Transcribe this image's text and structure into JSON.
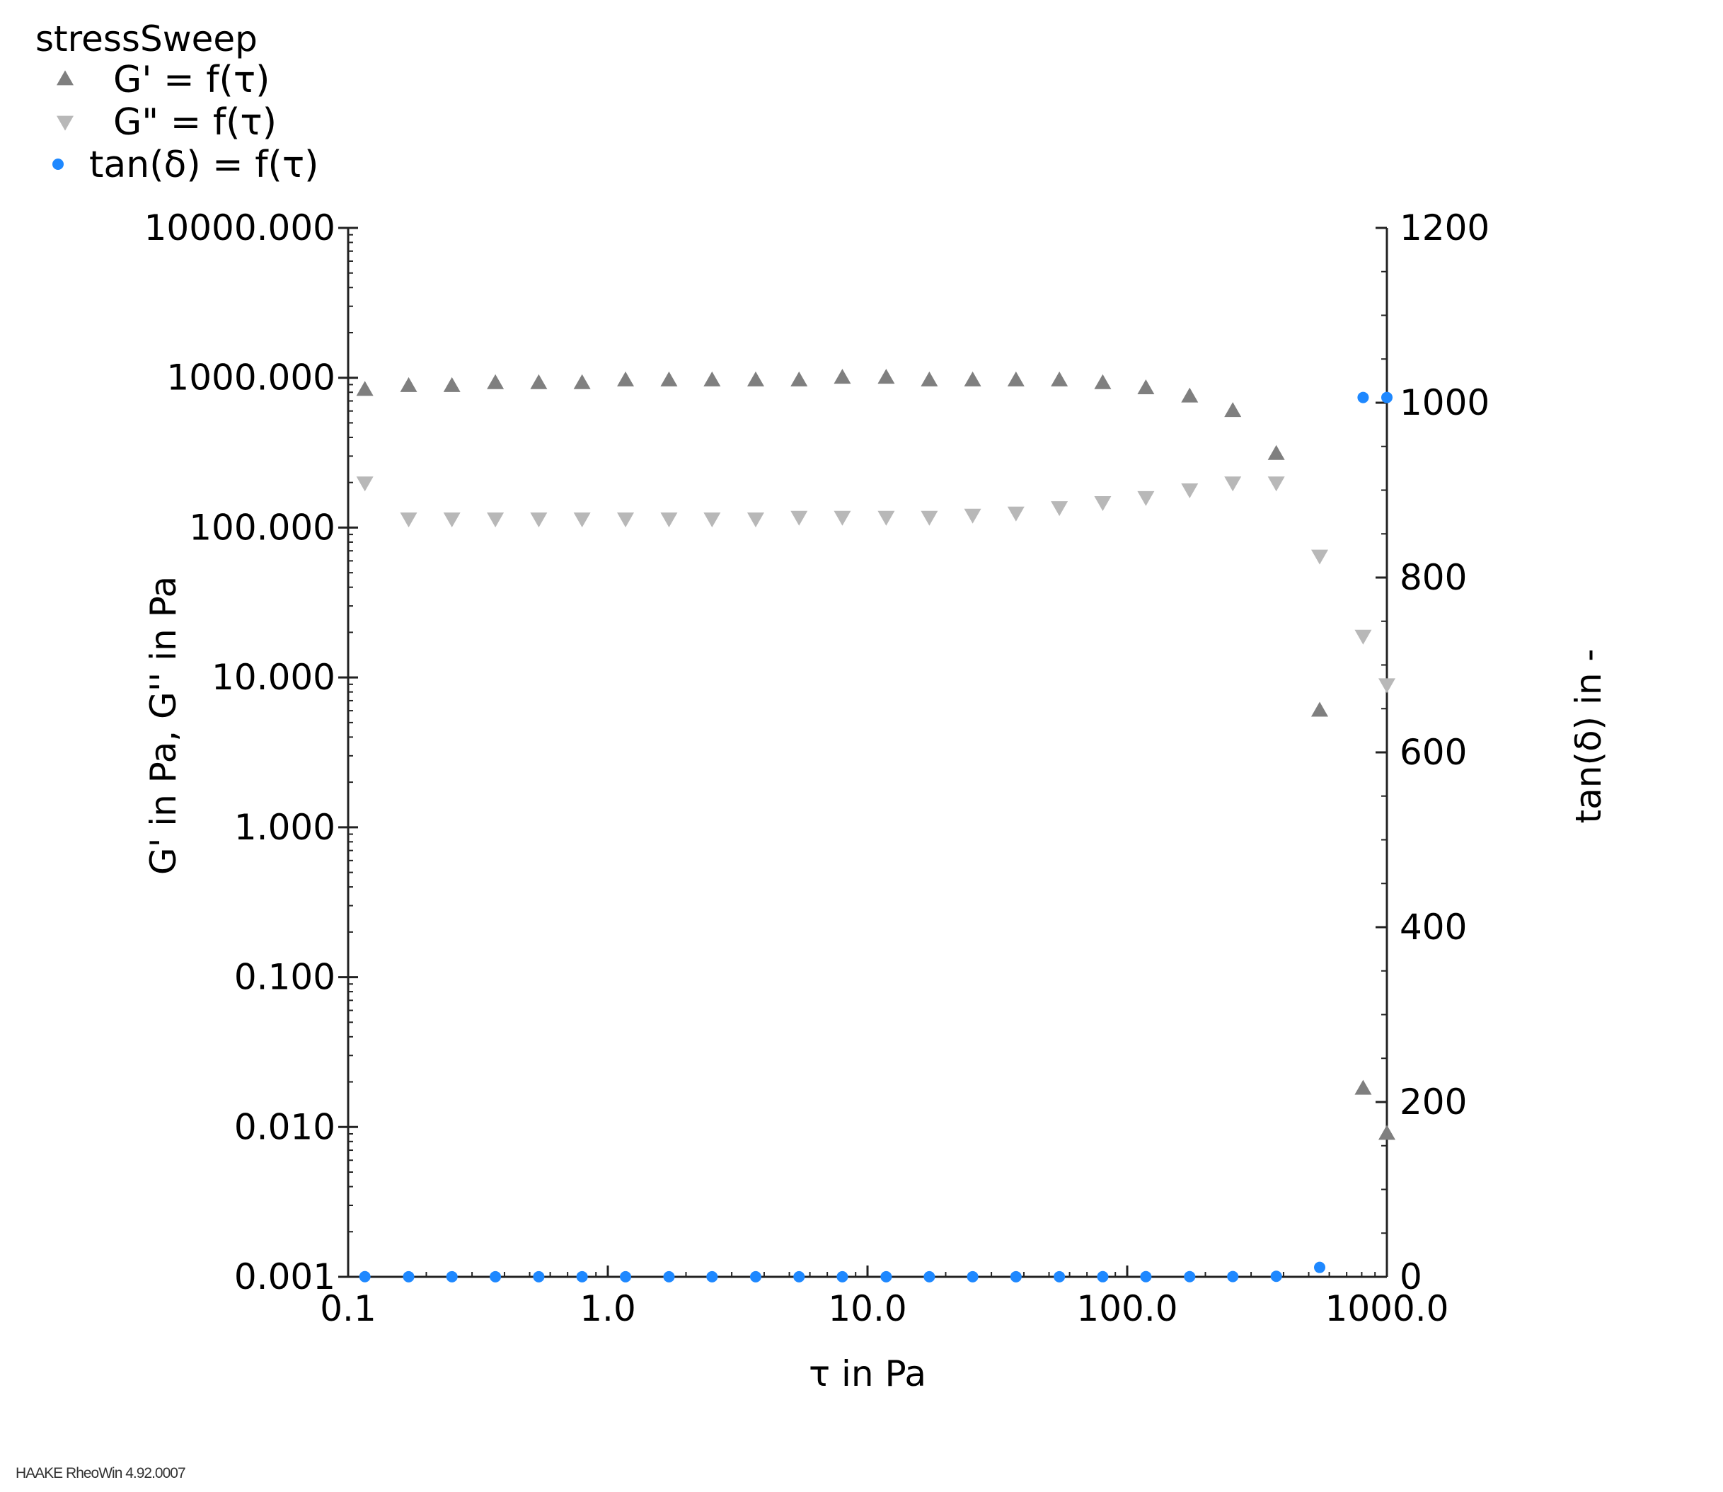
{
  "chart_data": {
    "type": "scatter",
    "title": "",
    "legend": {
      "title": "stressSweep",
      "placement": "top-left",
      "entries": [
        "G' = f(τ)",
        "G\" = f(τ)",
        "tan(δ) = f(τ)"
      ]
    },
    "xlabel": "τ in Pa",
    "ylabel": "G' in Pa, G'' in Pa",
    "y2label": "tan(δ) in -",
    "xscale": "log",
    "yscale": "log",
    "y2scale": "linear",
    "xlim": [
      0.1,
      1000
    ],
    "ylim": [
      0.001,
      10000
    ],
    "y2lim": [
      0,
      1200
    ],
    "grid": false,
    "xticks": [
      "0.1",
      "1.0",
      "10.0",
      "100.0",
      "1000.0"
    ],
    "yticks": [
      "0.001",
      "0.010",
      "0.100",
      "1.000",
      "10.000",
      "100.000",
      "1000.000",
      "10000.000"
    ],
    "y2ticks": [
      "0",
      "200",
      "400",
      "600",
      "800",
      "1000",
      "1200"
    ],
    "x": [
      0.116,
      0.171,
      0.251,
      0.369,
      0.542,
      0.796,
      1.17,
      1.72,
      2.52,
      3.71,
      5.45,
      8.0,
      11.8,
      17.3,
      25.4,
      37.3,
      54.8,
      80.5,
      118,
      174,
      255,
      375,
      551,
      810,
      1000
    ],
    "series": [
      {
        "name": "G' = f(τ)",
        "axis": "left",
        "marker": "triangle-up",
        "color": "#7f7f7f",
        "values": [
          830,
          880,
          880,
          920,
          920,
          920,
          960,
          960,
          960,
          960,
          960,
          1000,
          1000,
          960,
          960,
          960,
          960,
          920,
          850,
          750,
          600,
          310,
          6,
          0.018,
          0.009
        ]
      },
      {
        "name": "G\" = f(τ)",
        "axis": "left",
        "marker": "triangle-down",
        "color": "#b8b8b8",
        "values": [
          200,
          115,
          115,
          115,
          115,
          115,
          115,
          115,
          115,
          115,
          118,
          118,
          118,
          118,
          122,
          126,
          137,
          148,
          160,
          180,
          200,
          200,
          65,
          19,
          9
        ]
      },
      {
        "name": "tan(δ) = f(τ)",
        "axis": "right",
        "marker": "circle",
        "color": "#1e88ff",
        "values": [
          0.2,
          0.13,
          0.13,
          0.13,
          0.13,
          0.13,
          0.12,
          0.12,
          0.12,
          0.12,
          0.12,
          0.12,
          0.12,
          0.12,
          0.13,
          0.13,
          0.14,
          0.16,
          0.19,
          0.24,
          0.33,
          0.65,
          10.8,
          1006,
          1006
        ]
      }
    ]
  },
  "footer": {
    "software": "HAAKE RheoWin 4.92.0007"
  }
}
